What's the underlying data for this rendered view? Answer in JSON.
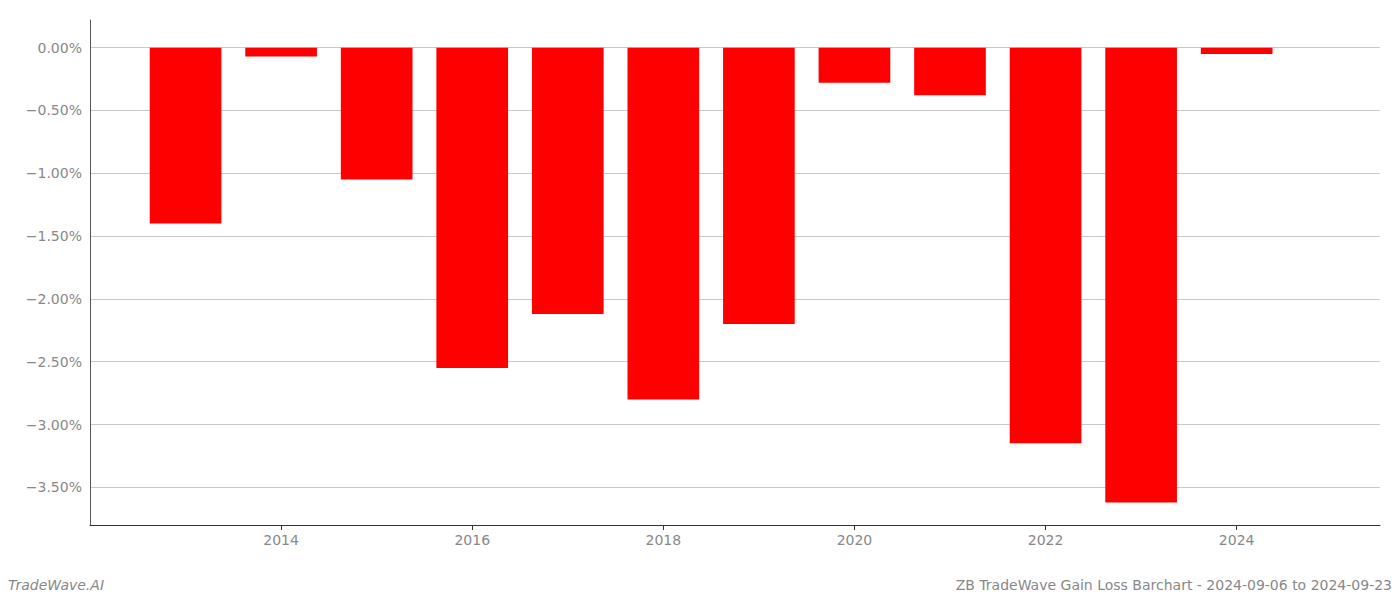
{
  "chart_data": {
    "type": "bar",
    "x": [
      2013,
      2014,
      2015,
      2016,
      2017,
      2018,
      2019,
      2020,
      2021,
      2022,
      2023,
      2024
    ],
    "values": [
      -1.4,
      -0.07,
      -1.05,
      -2.55,
      -2.12,
      -2.8,
      -2.2,
      -0.28,
      -0.38,
      -3.15,
      -3.62,
      -0.05
    ],
    "color": "#ff0000",
    "xlim": [
      2012.0,
      2025.5
    ],
    "xticks": [
      2014,
      2016,
      2018,
      2020,
      2022,
      2024
    ],
    "ylim": [
      -3.8,
      0.22
    ],
    "yticks": [
      {
        "value": 0.0,
        "label": "0.00%"
      },
      {
        "value": -0.5,
        "label": "−0.50%"
      },
      {
        "value": -1.0,
        "label": "−1.00%"
      },
      {
        "value": -1.5,
        "label": "−1.50%"
      },
      {
        "value": -2.0,
        "label": "−2.00%"
      },
      {
        "value": -2.5,
        "label": "−2.50%"
      },
      {
        "value": -3.0,
        "label": "−3.00%"
      },
      {
        "value": -3.5,
        "label": "−3.50%"
      }
    ],
    "grid": true,
    "annotations": [
      "TradeWave.AI",
      "ZB TradeWave Gain Loss Barchart - 2024-09-06 to 2024-09-23"
    ]
  }
}
